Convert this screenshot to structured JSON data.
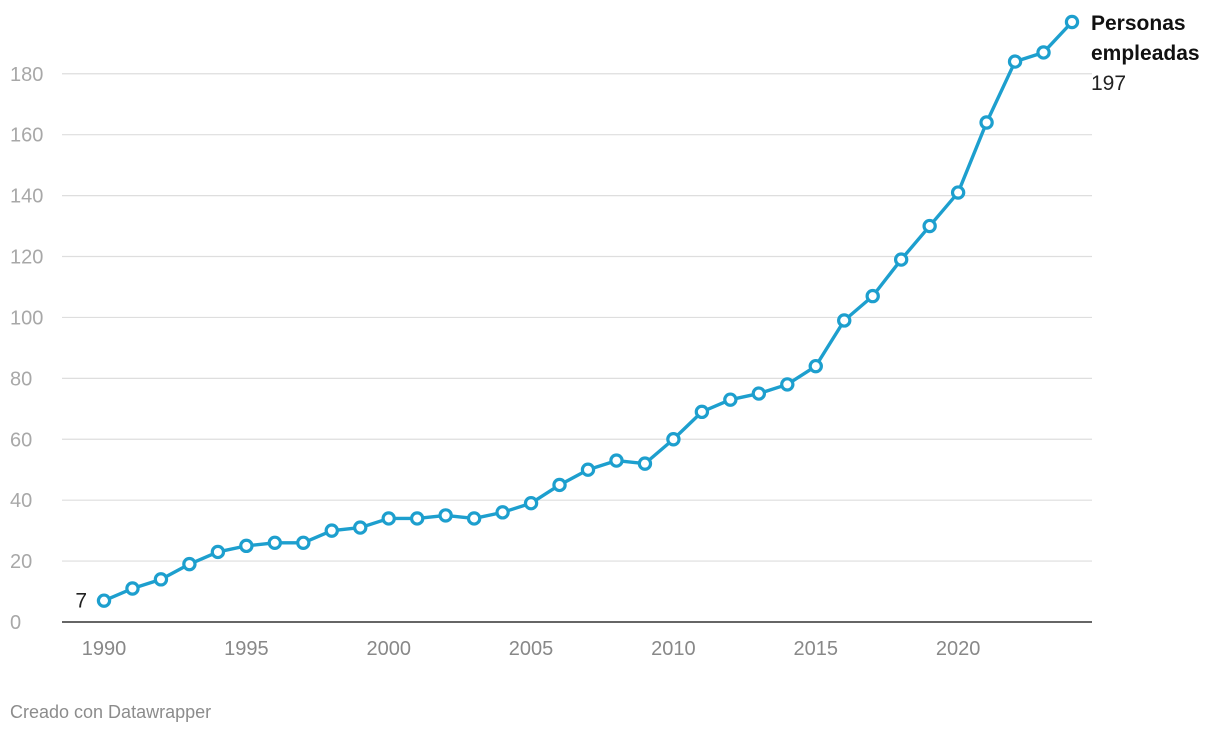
{
  "chart_data": {
    "type": "line",
    "title": "",
    "xlabel": "",
    "ylabel": "",
    "x": [
      1990,
      1991,
      1992,
      1993,
      1994,
      1995,
      1996,
      1997,
      1998,
      1999,
      2000,
      2001,
      2002,
      2003,
      2004,
      2005,
      2006,
      2007,
      2008,
      2009,
      2010,
      2011,
      2012,
      2013,
      2014,
      2015,
      2016,
      2017,
      2018,
      2019,
      2020,
      2021,
      2022,
      2023,
      2024
    ],
    "series": [
      {
        "name": "Personas empleadas",
        "name_lines": [
          "Personas",
          "empleadas"
        ],
        "color": "#1d9fce",
        "values": [
          7,
          11,
          14,
          19,
          23,
          25,
          26,
          26,
          30,
          31,
          34,
          34,
          35,
          34,
          36,
          39,
          45,
          50,
          53,
          52,
          60,
          69,
          73,
          75,
          78,
          84,
          99,
          107,
          119,
          130,
          141,
          164,
          184,
          187,
          197
        ]
      }
    ],
    "xlim": [
      1990,
      2024
    ],
    "ylim": [
      0,
      197
    ],
    "y_ticks": [
      0,
      20,
      40,
      60,
      80,
      100,
      120,
      140,
      160,
      180
    ],
    "x_ticks": [
      1990,
      1995,
      2000,
      2005,
      2010,
      2015,
      2020
    ],
    "value_labels": {
      "first": "7",
      "last": "197"
    },
    "grid": true,
    "legend": "direct label at end of line"
  },
  "footer": {
    "credit": "Creado con Datawrapper"
  }
}
